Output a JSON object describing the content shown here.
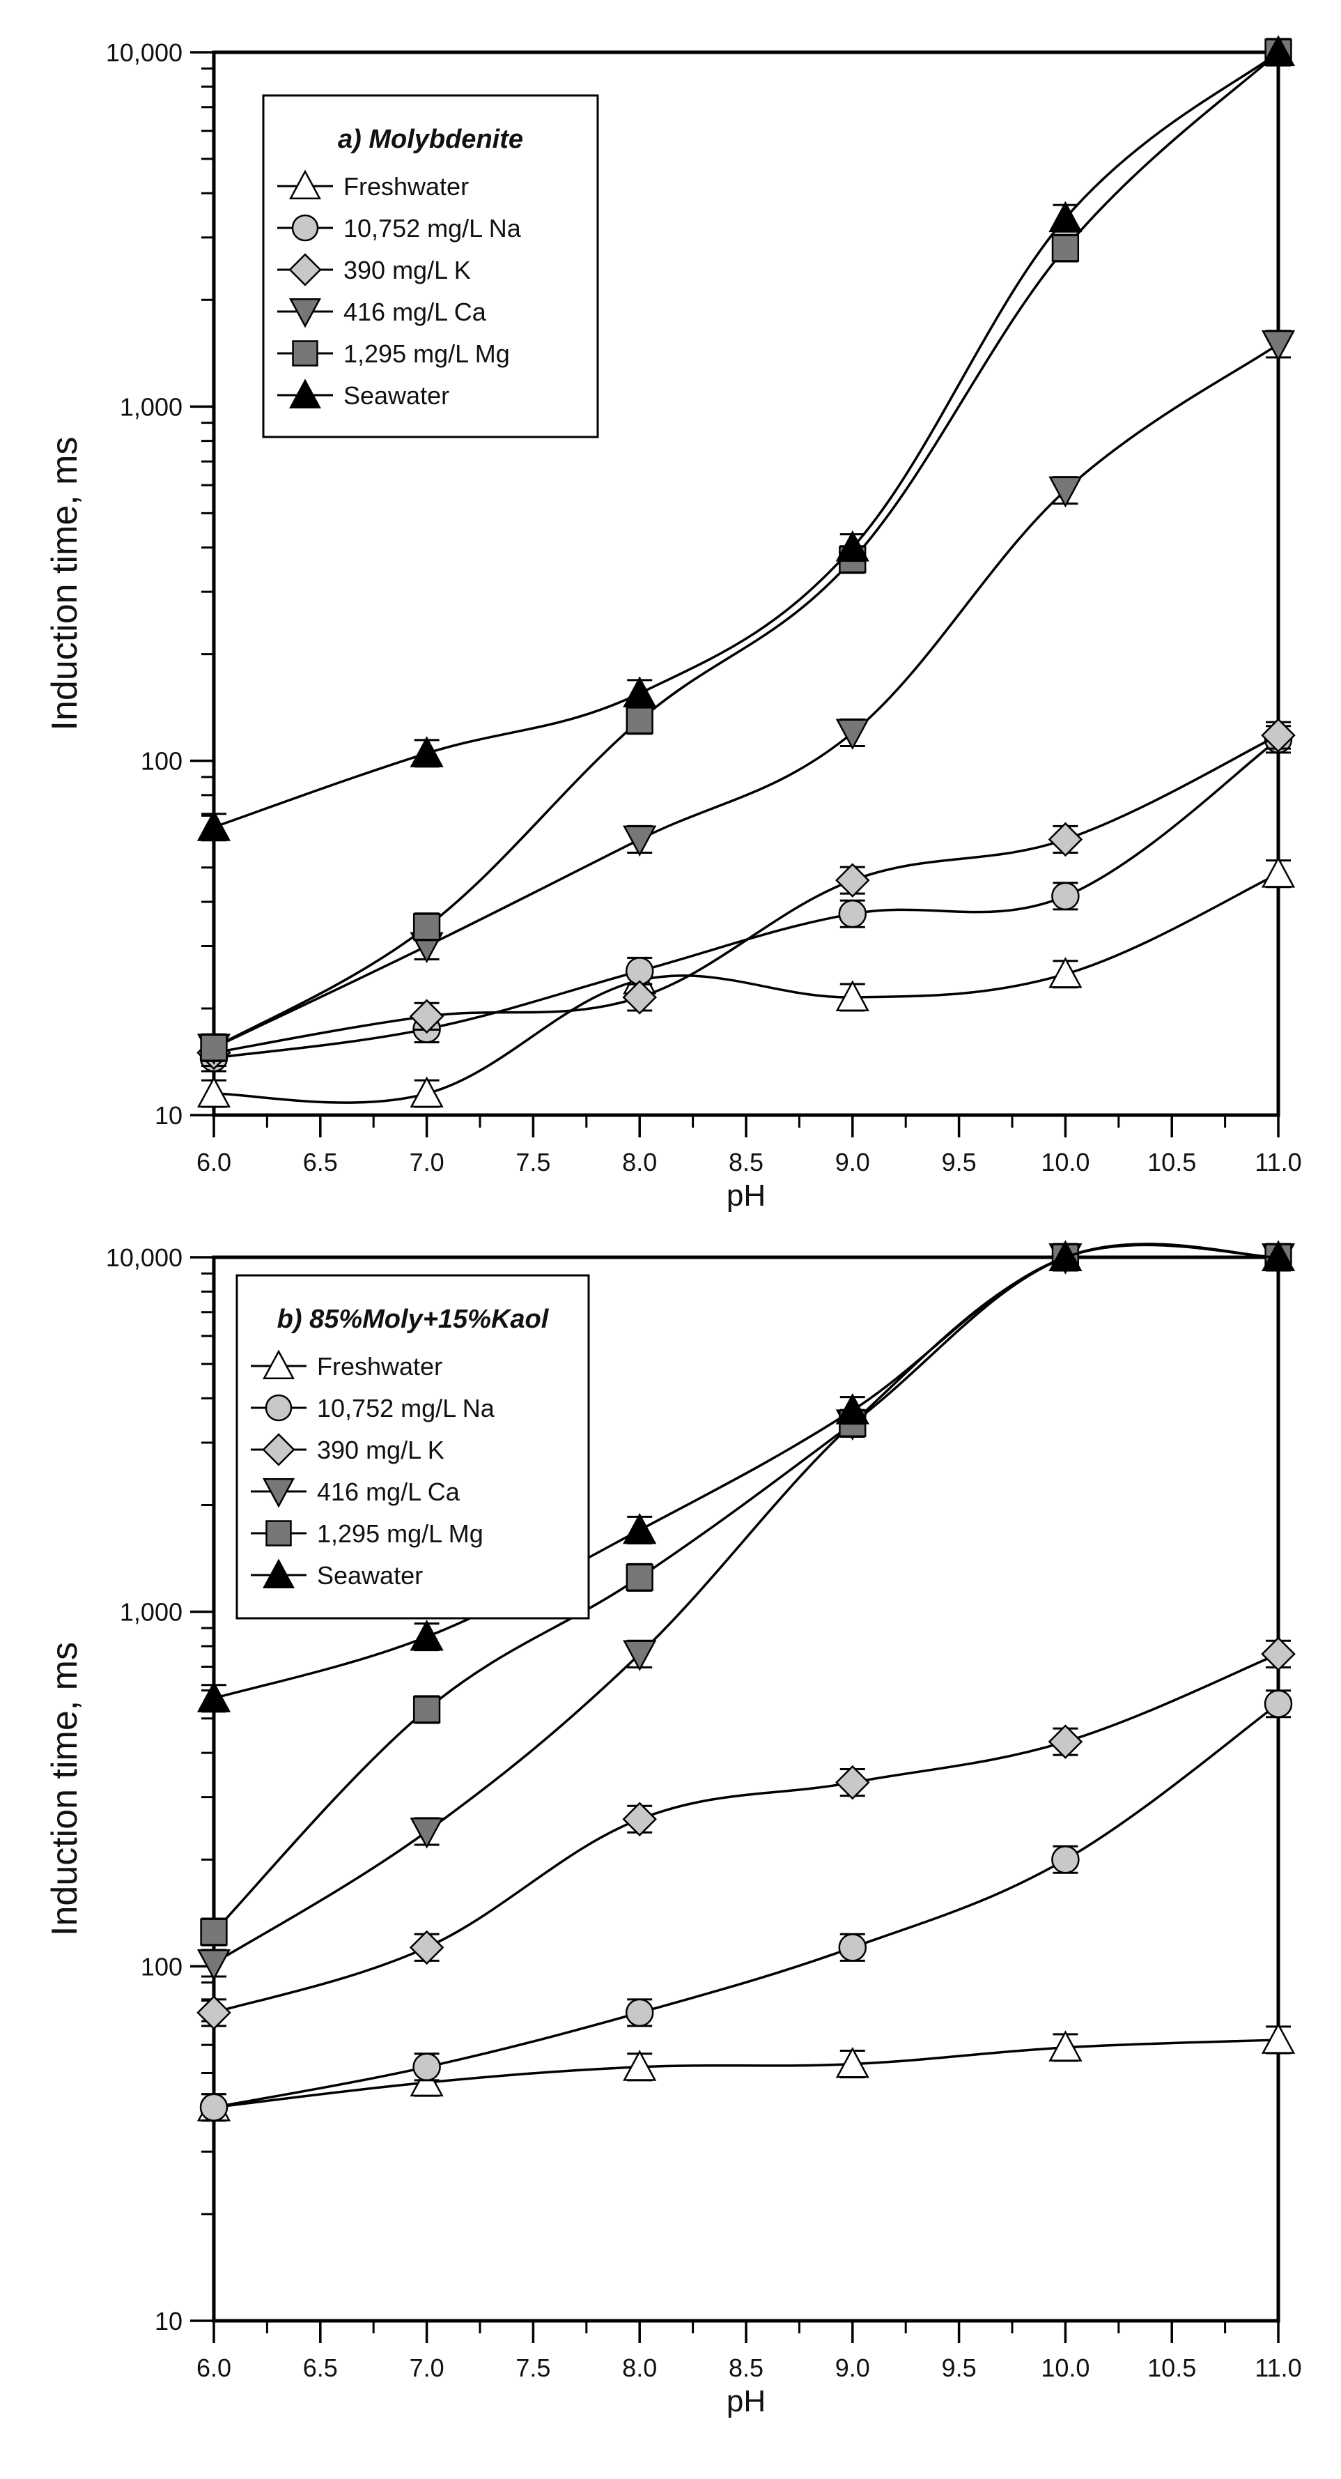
{
  "chart_data": [
    {
      "type": "line",
      "panel_label": "a) Molybdenite",
      "title": "a) Molybdenite",
      "xlabel": "pH",
      "ylabel": "Induction time, ms",
      "yscale": "log",
      "xlim": [
        6.0,
        11.0
      ],
      "ylim": [
        10,
        10000
      ],
      "x_ticks": [
        "6.0",
        "6.5",
        "7.0",
        "7.5",
        "8.0",
        "8.5",
        "9.0",
        "9.5",
        "10.0",
        "10.5",
        "11.0"
      ],
      "y_ticks": [
        "10",
        "100",
        "1,000",
        "10,000"
      ],
      "legend_position": "top-left",
      "x": [
        6.0,
        7.0,
        8.0,
        9.0,
        10.0,
        11.0
      ],
      "series": [
        {
          "name": "Freshwater",
          "marker": "triangle-up",
          "color": "#ffffff",
          "values": [
            11.5,
            11.5,
            24,
            21.5,
            25,
            48
          ]
        },
        {
          "name": "10,752 mg/L Na",
          "marker": "circle",
          "color": "#c8c8c8",
          "values": [
            14.5,
            17.5,
            25.5,
            37,
            41.5,
            115
          ]
        },
        {
          "name": "390 mg/L K",
          "marker": "diamond",
          "color": "#c8c8c8",
          "values": [
            15,
            19,
            21.5,
            46,
            60,
            118
          ]
        },
        {
          "name": "416 mg/L Ca",
          "marker": "triangle-down",
          "color": "#777777",
          "values": [
            15.5,
            30,
            60,
            120,
            580,
            1500
          ]
        },
        {
          "name": "1,295 mg/L Mg",
          "marker": "square",
          "color": "#777777",
          "values": [
            15.5,
            34,
            130,
            370,
            2800,
            10000
          ]
        },
        {
          "name": "Seawater",
          "marker": "triangle-up",
          "color": "#000000",
          "values": [
            65,
            105,
            155,
            400,
            3400,
            10000
          ]
        }
      ]
    },
    {
      "type": "line",
      "panel_label": "b) 85%Moly+15%Kaol",
      "title": "b) 85%Moly+15%Kaol",
      "xlabel": "pH",
      "ylabel": "Induction time, ms",
      "yscale": "log",
      "xlim": [
        6.0,
        11.0
      ],
      "ylim": [
        10,
        10000
      ],
      "x_ticks": [
        "6.0",
        "6.5",
        "7.0",
        "7.5",
        "8.0",
        "8.5",
        "9.0",
        "9.5",
        "10.0",
        "10.5",
        "11.0"
      ],
      "y_ticks": [
        "10",
        "100",
        "1,000",
        "10,000"
      ],
      "legend_position": "top-left",
      "x": [
        6.0,
        7.0,
        8.0,
        9.0,
        10.0,
        11.0
      ],
      "series": [
        {
          "name": "Freshwater",
          "marker": "triangle-up",
          "color": "#ffffff",
          "values": [
            40,
            47,
            52,
            53,
            59,
            62
          ]
        },
        {
          "name": "10,752 mg/L Na",
          "marker": "circle",
          "color": "#c8c8c8",
          "values": [
            40,
            52,
            74,
            113,
            200,
            550
          ]
        },
        {
          "name": "390 mg/L K",
          "marker": "diamond",
          "color": "#c8c8c8",
          "values": [
            74,
            113,
            260,
            330,
            430,
            760
          ]
        },
        {
          "name": "416 mg/L Ca",
          "marker": "triangle-down",
          "color": "#777777",
          "values": [
            102,
            240,
            760,
            3400,
            10000,
            10000
          ]
        },
        {
          "name": "1,295 mg/L Mg",
          "marker": "square",
          "color": "#777777",
          "values": [
            125,
            530,
            1250,
            3400,
            10000,
            10000
          ]
        },
        {
          "name": "Seawater",
          "marker": "triangle-up",
          "color": "#000000",
          "values": [
            570,
            850,
            1700,
            3700,
            10000,
            10000
          ]
        }
      ]
    }
  ]
}
